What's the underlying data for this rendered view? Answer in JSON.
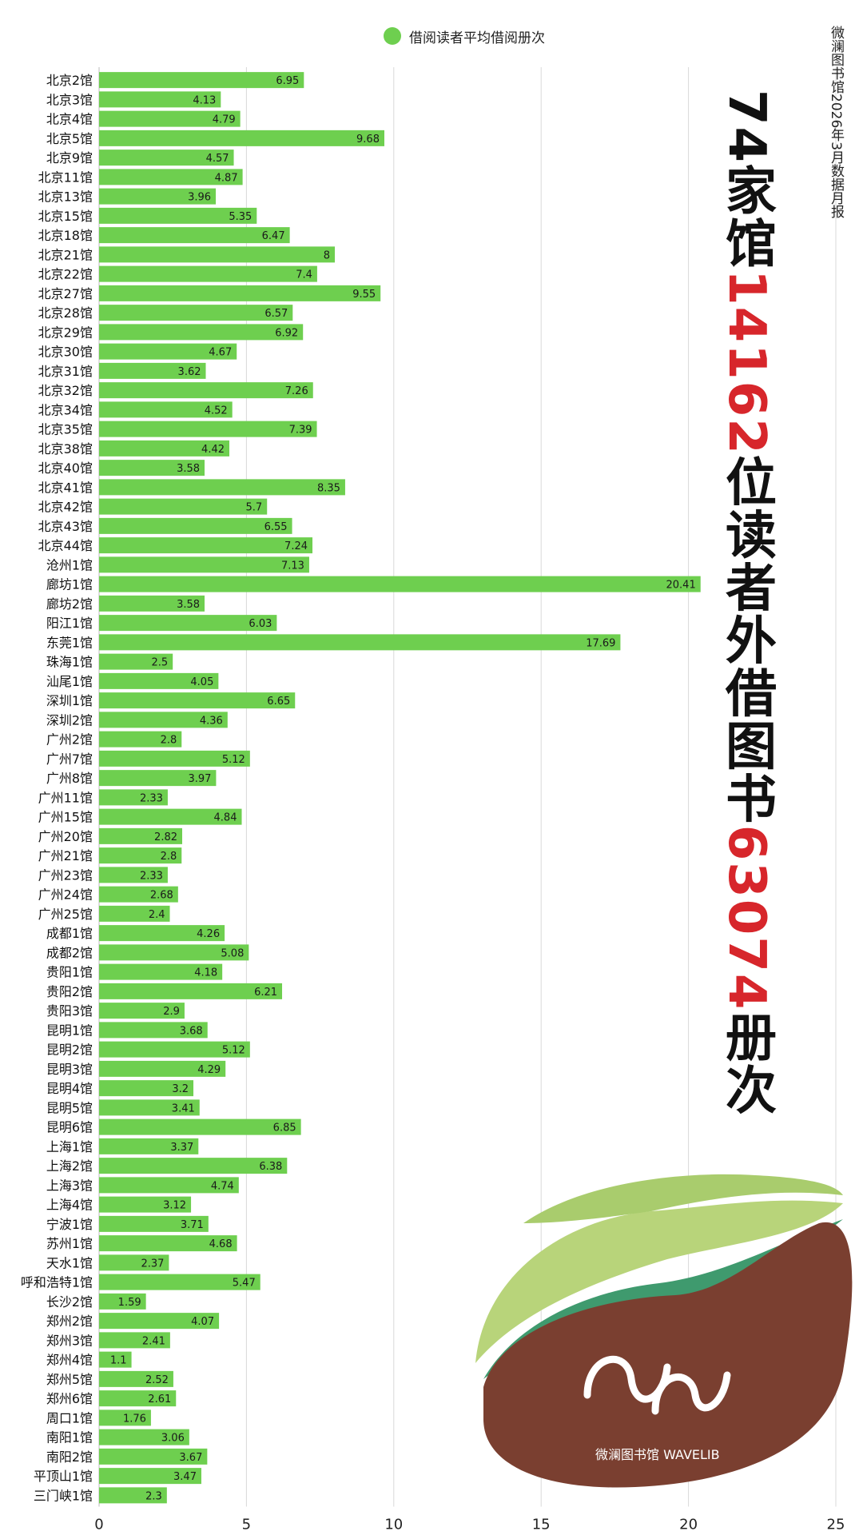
{
  "legend": {
    "label": "借阅读者平均借阅册次",
    "color": "#6ecf4f"
  },
  "side_note": "微澜图书馆2026年3月数据月报",
  "headline": {
    "p1": "74家馆",
    "p2": "14162",
    "p3": "位读者外借图书",
    "p4": "63074",
    "p5": "册次"
  },
  "logo_text": "微澜图书馆 WAVELIB",
  "colors": {
    "bar": "#6ecf4f",
    "accent_red": "#d7262b",
    "bean": "#7a3f30",
    "leaf_light": "#b8d47a",
    "leaf_teal": "#3f9a6e"
  },
  "chart_data": {
    "type": "bar",
    "orientation": "horizontal",
    "series": [
      {
        "name": "借阅读者平均借阅册次"
      }
    ],
    "xlim": [
      0,
      25
    ],
    "xticks": [
      "0",
      "5",
      "10",
      "15",
      "20",
      "25"
    ],
    "grid": true,
    "legend_position": "top",
    "categories": [
      "北京2馆",
      "北京3馆",
      "北京4馆",
      "北京5馆",
      "北京9馆",
      "北京11馆",
      "北京13馆",
      "北京15馆",
      "北京18馆",
      "北京21馆",
      "北京22馆",
      "北京27馆",
      "北京28馆",
      "北京29馆",
      "北京30馆",
      "北京31馆",
      "北京32馆",
      "北京34馆",
      "北京35馆",
      "北京38馆",
      "北京40馆",
      "北京41馆",
      "北京42馆",
      "北京43馆",
      "北京44馆",
      "沧州1馆",
      "廊坊1馆",
      "廊坊2馆",
      "阳江1馆",
      "东莞1馆",
      "珠海1馆",
      "汕尾1馆",
      "深圳1馆",
      "深圳2馆",
      "广州2馆",
      "广州7馆",
      "广州8馆",
      "广州11馆",
      "广州15馆",
      "广州20馆",
      "广州21馆",
      "广州23馆",
      "广州24馆",
      "广州25馆",
      "成都1馆",
      "成都2馆",
      "贵阳1馆",
      "贵阳2馆",
      "贵阳3馆",
      "昆明1馆",
      "昆明2馆",
      "昆明3馆",
      "昆明4馆",
      "昆明5馆",
      "昆明6馆",
      "上海1馆",
      "上海2馆",
      "上海3馆",
      "上海4馆",
      "宁波1馆",
      "苏州1馆",
      "天水1馆",
      "呼和浩特1馆",
      "长沙2馆",
      "郑州2馆",
      "郑州3馆",
      "郑州4馆",
      "郑州5馆",
      "郑州6馆",
      "周口1馆",
      "南阳1馆",
      "南阳2馆",
      "平顶山1馆",
      "三门峡1馆"
    ],
    "values": [
      6.95,
      4.13,
      4.79,
      9.68,
      4.57,
      4.87,
      3.96,
      5.35,
      6.47,
      8,
      7.4,
      9.55,
      6.57,
      6.92,
      4.67,
      3.62,
      7.26,
      4.52,
      7.39,
      4.42,
      3.58,
      8.35,
      5.7,
      6.55,
      7.24,
      7.13,
      20.41,
      3.58,
      6.03,
      17.69,
      2.5,
      4.05,
      6.65,
      4.36,
      2.8,
      5.12,
      3.97,
      2.33,
      4.84,
      2.82,
      2.8,
      2.33,
      2.68,
      2.4,
      4.26,
      5.08,
      4.18,
      6.21,
      2.9,
      3.68,
      5.12,
      4.29,
      3.2,
      3.41,
      6.85,
      3.37,
      6.38,
      4.74,
      3.12,
      3.71,
      4.68,
      2.37,
      5.47,
      1.59,
      4.07,
      2.41,
      1.1,
      2.52,
      2.61,
      1.76,
      3.06,
      3.67,
      3.47,
      2.3
    ]
  }
}
